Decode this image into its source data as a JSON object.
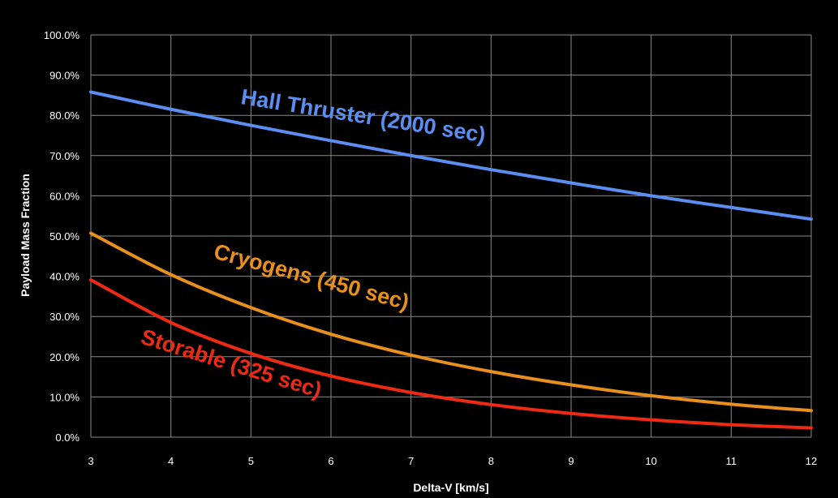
{
  "chart_data": {
    "type": "line",
    "xlabel": "Delta-V [km/s]",
    "ylabel": "Payload Mass Fraction",
    "xlim": [
      3,
      12
    ],
    "ylim": [
      0,
      100
    ],
    "x_ticks": [
      "3",
      "4",
      "5",
      "6",
      "7",
      "8",
      "9",
      "10",
      "11",
      "12"
    ],
    "y_ticks": [
      "0.0%",
      "10.0%",
      "20.0%",
      "30.0%",
      "40.0%",
      "50.0%",
      "60.0%",
      "70.0%",
      "80.0%",
      "90.0%",
      "100.0%"
    ],
    "grid": true,
    "x": [
      3,
      4,
      5,
      6,
      7,
      8,
      9,
      10,
      11,
      12
    ],
    "series": [
      {
        "name": "Hall Thruster (2000 sec)",
        "color": "#5b8ef0",
        "values": [
          85.8,
          81.5,
          77.5,
          73.7,
          70.0,
          66.5,
          63.2,
          60.0,
          57.1,
          54.2
        ]
      },
      {
        "name": "Cryogens (450 sec)",
        "color": "#e8901e",
        "values": [
          50.7,
          40.4,
          32.2,
          25.6,
          20.4,
          16.3,
          13.0,
          10.3,
          8.2,
          6.6
        ]
      },
      {
        "name": "Storable (325 sec)",
        "color": "#ee2a14",
        "values": [
          39.1,
          28.5,
          20.8,
          15.2,
          11.1,
          8.1,
          5.9,
          4.3,
          3.1,
          2.3
        ]
      }
    ]
  }
}
